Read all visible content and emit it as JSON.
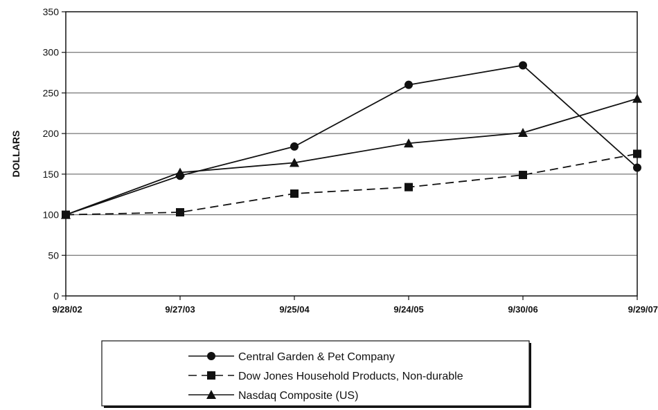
{
  "chart_data": {
    "type": "line",
    "title": "",
    "xlabel": "",
    "ylabel": "DOLLARS",
    "ylim": [
      0,
      350
    ],
    "yticks": [
      0,
      50,
      100,
      150,
      200,
      250,
      300,
      350
    ],
    "grid": true,
    "legend": "bottom",
    "categories": [
      "9/28/02",
      "9/27/03",
      "9/25/04",
      "9/24/05",
      "9/30/06",
      "9/29/07"
    ],
    "series": [
      {
        "name": "Central Garden & Pet Company",
        "values": [
          100,
          148,
          184,
          260,
          284,
          158
        ],
        "marker": "circle",
        "dash": "solid",
        "color": "#111111"
      },
      {
        "name": "Dow Jones Household Products, Non-durable",
        "values": [
          100,
          103,
          126,
          134,
          149,
          175
        ],
        "marker": "square",
        "dash": "dashed",
        "color": "#111111"
      },
      {
        "name": "Nasdaq Composite (US)",
        "values": [
          100,
          152,
          164,
          188,
          201,
          243
        ],
        "marker": "triangle",
        "dash": "solid",
        "color": "#111111"
      }
    ]
  }
}
